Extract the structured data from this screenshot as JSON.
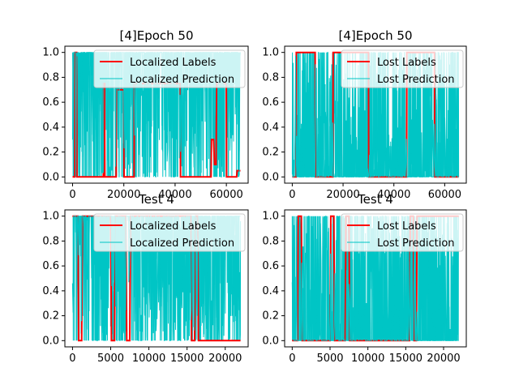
{
  "colors": {
    "labels": "#ff0000",
    "prediction": "#00c5c5",
    "legend_bg": "#ffffff"
  },
  "chart_data": [
    {
      "type": "line",
      "title": "[4]Epoch 50",
      "xlim": [
        -3000,
        68500
      ],
      "ylim": [
        -0.05,
        1.05
      ],
      "xticks": [
        0,
        20000,
        40000,
        60000
      ],
      "yticks": [
        0.0,
        0.2,
        0.4,
        0.6,
        0.8,
        1.0
      ],
      "legend": "top-right",
      "series": [
        {
          "name": "Localized Labels",
          "color": "#ff0000",
          "style": "thick",
          "x": [
            0,
            900,
            1000,
            1600,
            1700,
            12000,
            12100,
            12500,
            12600,
            17000,
            17100,
            20000,
            20100,
            24000,
            24100,
            42000,
            42100,
            54000,
            54200,
            55000,
            55400,
            56000,
            56200,
            60000,
            60100,
            64000,
            64200,
            65500
          ],
          "y": [
            0,
            0,
            1,
            1,
            0,
            0,
            0.75,
            0.75,
            0,
            0,
            0.7,
            0.7,
            0,
            0,
            0.75,
            0.75,
            0,
            0,
            0.3,
            0.3,
            0.1,
            0.1,
            0.75,
            0.75,
            0,
            0,
            0.05,
            0.05
          ]
        },
        {
          "name": "Localized Prediction",
          "color": "#00c5c5",
          "style": "thin",
          "pattern": "dense_high",
          "x": [
            0,
            65500
          ],
          "y": [
            1,
            1
          ]
        }
      ]
    },
    {
      "type": "line",
      "title": "[4]Epoch 50",
      "xlim": [
        -3000,
        68500
      ],
      "ylim": [
        -0.05,
        1.05
      ],
      "xticks": [
        0,
        20000,
        40000,
        60000
      ],
      "yticks": [
        0.0,
        0.2,
        0.4,
        0.6,
        0.8,
        1.0
      ],
      "legend": "top-right",
      "series": [
        {
          "name": "Lost Labels",
          "color": "#ff0000",
          "style": "thick",
          "x": [
            0,
            1500,
            1600,
            9000,
            9100,
            16000,
            16100,
            30000,
            30100,
            45000,
            45100,
            56000,
            56100,
            65500
          ],
          "y": [
            0,
            0,
            1,
            1,
            0,
            0,
            1,
            1,
            0,
            0,
            1,
            1,
            0,
            0
          ]
        },
        {
          "name": "Lost Prediction",
          "color": "#00c5c5",
          "style": "thin",
          "pattern": "dense_low",
          "x": [
            0,
            65500
          ],
          "y": [
            0,
            0
          ]
        }
      ]
    },
    {
      "type": "line",
      "title": "Test 4",
      "xlim": [
        -1000,
        23000
      ],
      "ylim": [
        -0.05,
        1.05
      ],
      "xticks": [
        0,
        5000,
        10000,
        15000,
        20000
      ],
      "yticks": [
        0.0,
        0.2,
        0.4,
        0.6,
        0.8,
        1.0
      ],
      "legend": "top-right",
      "series": [
        {
          "name": "Localized Labels",
          "color": "#ff0000",
          "style": "thick",
          "x": [
            0,
            700,
            800,
            1200,
            1300,
            5000,
            5100,
            5500,
            5600,
            7000,
            7100,
            7500,
            7600,
            15500,
            15600,
            16000,
            16100,
            16400,
            16500,
            22000
          ],
          "y": [
            1,
            1,
            0,
            0,
            1,
            1,
            0,
            0,
            1,
            1,
            0,
            0,
            1,
            1,
            0,
            0,
            1,
            1,
            0,
            0
          ]
        },
        {
          "name": "Localized Prediction",
          "color": "#00c5c5",
          "style": "thin",
          "pattern": "dense_high",
          "x": [
            0,
            22000
          ],
          "y": [
            1,
            1
          ]
        }
      ]
    },
    {
      "type": "line",
      "title": "Test 4",
      "xlim": [
        -1000,
        23000
      ],
      "ylim": [
        -0.05,
        1.05
      ],
      "xticks": [
        0,
        5000,
        10000,
        15000,
        20000
      ],
      "yticks": [
        0.0,
        0.2,
        0.4,
        0.6,
        0.8,
        1.0
      ],
      "legend": "top-right",
      "series": [
        {
          "name": "Lost Labels",
          "color": "#ff0000",
          "style": "thick",
          "x": [
            0,
            700,
            800,
            1200,
            1300,
            5000,
            5100,
            5500,
            5600,
            7000,
            7100,
            7500,
            7600,
            15500,
            15600,
            16000,
            16100,
            16400,
            16500,
            22000
          ],
          "y": [
            0,
            0,
            1,
            1,
            0,
            0,
            1,
            1,
            0,
            0,
            1,
            1,
            0,
            0,
            1,
            1,
            0,
            0,
            1,
            1
          ]
        },
        {
          "name": "Lost Prediction",
          "color": "#00c5c5",
          "style": "thin",
          "pattern": "dense_low",
          "x": [
            0,
            22000
          ],
          "y": [
            0,
            0
          ]
        }
      ]
    }
  ]
}
